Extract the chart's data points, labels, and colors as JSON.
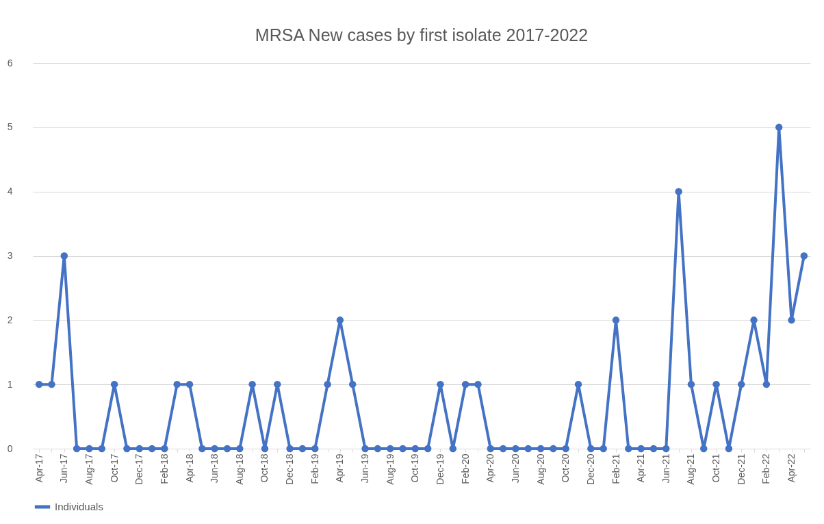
{
  "chart_data": {
    "type": "line",
    "title": "MRSA New cases by first isolate 2017-2022",
    "categories": [
      "Apr-17",
      null,
      "Jun-17",
      null,
      "Aug-17",
      null,
      "Oct-17",
      null,
      "Dec-17",
      null,
      "Feb-18",
      null,
      "Apr-18",
      null,
      "Jun-18",
      null,
      "Aug-18",
      null,
      "Oct-18",
      null,
      "Dec-18",
      null,
      "Feb-19",
      null,
      "Apr-19",
      null,
      "Jun-19",
      null,
      "Aug-19",
      null,
      "Oct-19",
      null,
      "Dec-19",
      null,
      "Feb-20",
      null,
      "Apr-20",
      null,
      "Jun-20",
      null,
      "Aug-20",
      null,
      "Oct-20",
      null,
      "Dec-20",
      null,
      "Feb-21",
      null,
      "Apr-21",
      null,
      "Jun-21",
      null,
      "Aug-21",
      null,
      "Oct-21",
      null,
      "Dec-21",
      null,
      "Feb-22",
      null,
      "Apr-22",
      null
    ],
    "series": [
      {
        "name": "Individuals",
        "color": "#4472c4",
        "values": [
          1,
          1,
          3,
          0,
          0,
          0,
          1,
          0,
          0,
          0,
          0,
          1,
          1,
          0,
          0,
          0,
          0,
          1,
          0,
          1,
          0,
          0,
          0,
          1,
          2,
          1,
          0,
          0,
          0,
          0,
          0,
          0,
          1,
          0,
          1,
          1,
          0,
          0,
          0,
          0,
          0,
          0,
          0,
          1,
          0,
          0,
          2,
          0,
          0,
          0,
          0,
          4,
          1,
          0,
          1,
          0,
          1,
          2,
          1,
          5,
          2,
          3
        ]
      }
    ],
    "ylim": [
      0,
      6
    ],
    "yticks": [
      0,
      1,
      2,
      3,
      4,
      5,
      6
    ],
    "grid": "y",
    "legend": "bottom",
    "marker": "circle",
    "line_style": "solid"
  }
}
